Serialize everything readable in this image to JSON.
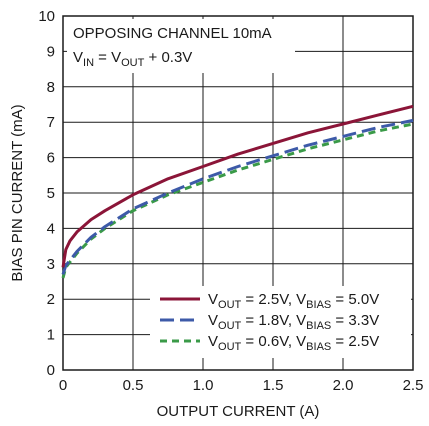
{
  "chart_data": {
    "type": "line",
    "title": "",
    "xlabel": "OUTPUT CURRENT (A)",
    "ylabel": "BIAS PIN CURRENT (mA)",
    "xlim": [
      0,
      2.5
    ],
    "ylim": [
      0,
      10
    ],
    "x_ticks": [
      0,
      0.5,
      1.0,
      1.5,
      2.0,
      2.5
    ],
    "x_tick_labels": [
      "0",
      "0.5",
      "1.0",
      "1.5",
      "2.0",
      "2.5"
    ],
    "y_ticks": [
      0,
      1,
      2,
      3,
      4,
      5,
      6,
      7,
      8,
      9,
      10
    ],
    "y_tick_labels": [
      "0",
      "1",
      "2",
      "3",
      "4",
      "5",
      "6",
      "7",
      "8",
      "9",
      "10"
    ],
    "grid": true,
    "legend_position": "bottom-right",
    "annotations": {
      "line1": "OPPOSING CHANNEL 10mA",
      "line2_main": "V",
      "line2_sub": "IN",
      "line2_mid": " = V",
      "line2_sub2": "OUT",
      "line2_end": " + 0.3V"
    },
    "x": [
      0,
      0.02,
      0.05,
      0.1,
      0.2,
      0.3,
      0.5,
      0.75,
      1.0,
      1.25,
      1.5,
      1.75,
      2.0,
      2.25,
      2.5
    ],
    "series": [
      {
        "name": "VOUT = 2.5V, VBIAS = 5.0V",
        "legend": {
          "a": "V",
          "a_sub": "OUT",
          "b": " = 2.5V, V",
          "b_sub": "BIAS",
          "c": " = 5.0V"
        },
        "color": "#8b1538",
        "dash": "solid",
        "values": [
          2.9,
          3.4,
          3.65,
          3.9,
          4.25,
          4.5,
          4.95,
          5.4,
          5.75,
          6.1,
          6.4,
          6.7,
          6.95,
          7.2,
          7.45
        ]
      },
      {
        "name": "VOUT = 1.8V, VBIAS = 3.3V",
        "legend": {
          "a": "V",
          "a_sub": "OUT",
          "b": " = 1.8V, V",
          "b_sub": "BIAS",
          "c": " = 3.3V"
        },
        "color": "#3d5aa8",
        "dash": "long-dash",
        "values": [
          2.7,
          2.95,
          3.1,
          3.35,
          3.75,
          4.05,
          4.55,
          5.0,
          5.4,
          5.75,
          6.05,
          6.35,
          6.6,
          6.85,
          7.05
        ]
      },
      {
        "name": "VOUT = 0.6V, VBIAS = 2.5V",
        "legend": {
          "a": "V",
          "a_sub": "OUT",
          "b": " = 0.6V, V",
          "b_sub": "BIAS",
          "c": " = 2.5V"
        },
        "color": "#3a9a48",
        "dash": "short-dash",
        "values": [
          2.6,
          2.9,
          3.05,
          3.3,
          3.7,
          4.0,
          4.5,
          4.95,
          5.3,
          5.65,
          5.95,
          6.25,
          6.5,
          6.75,
          6.95
        ]
      }
    ]
  }
}
